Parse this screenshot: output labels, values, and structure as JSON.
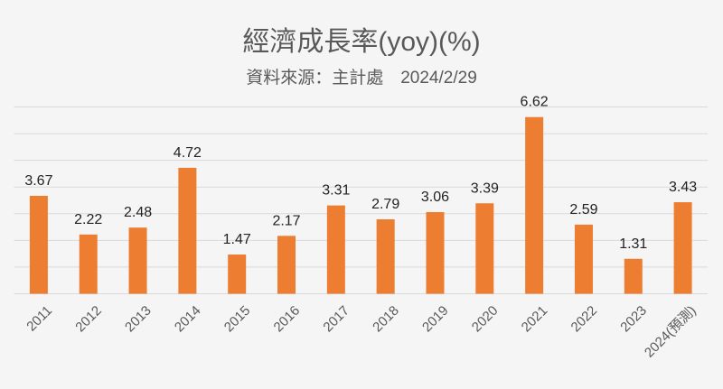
{
  "chart_data": {
    "type": "bar",
    "title": "經濟成長率(yoy)(%)",
    "subtitle": "資料來源：主計處　2024/2/29",
    "categories": [
      "2011",
      "2012",
      "2013",
      "2014",
      "2015",
      "2016",
      "2017",
      "2018",
      "2019",
      "2020",
      "2021",
      "2022",
      "2023",
      "2024(預測)"
    ],
    "values": [
      3.67,
      2.22,
      2.48,
      4.72,
      1.47,
      2.17,
      3.31,
      2.79,
      3.06,
      3.39,
      6.62,
      2.59,
      1.31,
      3.43
    ],
    "ylim": [
      0,
      7
    ],
    "ytick_step": 1,
    "y_tick_labels_shown": false,
    "grid": true,
    "data_labels": true,
    "xlabel": "",
    "ylabel": "",
    "colors": {
      "bar": "#ED7D31",
      "grid": "#d9d9d9",
      "background": "#f5f5f5",
      "text": "#595959"
    }
  }
}
